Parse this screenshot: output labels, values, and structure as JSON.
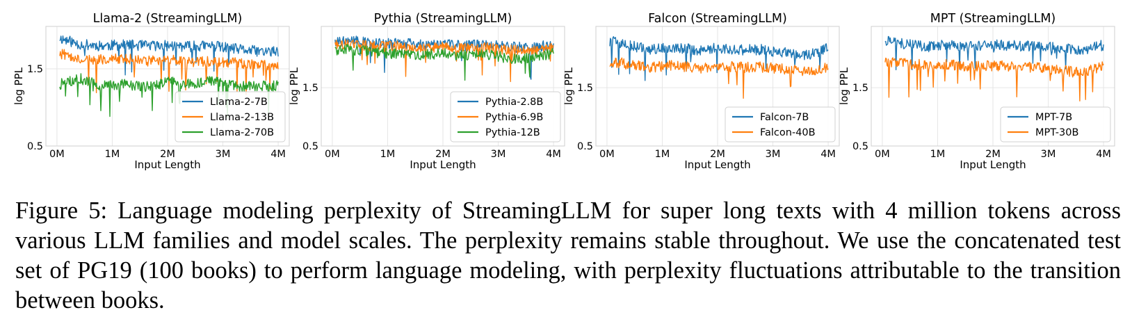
{
  "caption": "Figure 5: Language modeling perplexity of StreamingLLM for super long texts with 4 million tokens across various LLM families and model scales. The perplexity remains stable throughout. We use the concatenated test set of PG19 (100 books) to perform language modeling, with perplexity fluctuations attributable to the transition between books.",
  "colors": {
    "blue": "#1f77b4",
    "orange": "#ff7f0e",
    "green": "#2ca02c",
    "grid": "#e6e6e6"
  },
  "chart_data": [
    {
      "type": "line",
      "title": "Llama-2 (StreamingLLM)",
      "xlabel": "Input Length",
      "ylabel": "log PPL",
      "xticks": [
        "0M",
        "1M",
        "2M",
        "3M",
        "4M"
      ],
      "yticks": [
        "0.5",
        "1.5"
      ],
      "xlim": [
        -0.2,
        4.2
      ],
      "ylim": [
        0.5,
        2.05
      ],
      "grid": true,
      "legend": "lower right",
      "x": [
        0.05,
        0.4,
        0.8,
        1.2,
        1.6,
        2.0,
        2.4,
        2.8,
        3.2,
        3.6,
        4.0
      ],
      "series": [
        {
          "name": "Llama-2-7B",
          "color": "blue",
          "values": [
            1.9,
            1.82,
            1.8,
            1.81,
            1.8,
            1.8,
            1.79,
            1.8,
            1.76,
            1.73,
            1.72
          ]
        },
        {
          "name": "Llama-2-13B",
          "color": "orange",
          "values": [
            1.7,
            1.64,
            1.62,
            1.63,
            1.6,
            1.62,
            1.59,
            1.6,
            1.58,
            1.55,
            1.56
          ]
        },
        {
          "name": "Llama-2-70B",
          "color": "green",
          "values": [
            1.3,
            1.38,
            1.28,
            1.3,
            1.27,
            1.33,
            1.3,
            1.34,
            1.28,
            1.27,
            1.28
          ]
        }
      ]
    },
    {
      "type": "line",
      "title": "Pythia (StreamingLLM)",
      "xlabel": "Input Length",
      "ylabel": "log PPL",
      "xticks": [
        "0M",
        "1M",
        "2M",
        "3M",
        "4M"
      ],
      "yticks": [
        "0.5",
        "1.5"
      ],
      "xlim": [
        -0.2,
        4.2
      ],
      "ylim": [
        0.5,
        2.55
      ],
      "grid": true,
      "legend": "lower right",
      "x": [
        0.05,
        0.4,
        0.8,
        1.2,
        1.6,
        2.0,
        2.4,
        2.8,
        3.2,
        3.6,
        4.0
      ],
      "series": [
        {
          "name": "Pythia-2.8B",
          "color": "blue",
          "values": [
            2.3,
            2.3,
            2.25,
            2.26,
            2.24,
            2.25,
            2.22,
            2.24,
            2.2,
            2.18,
            2.24
          ]
        },
        {
          "name": "Pythia-6.9B",
          "color": "orange",
          "values": [
            2.25,
            2.24,
            2.2,
            2.21,
            2.19,
            2.2,
            2.17,
            2.19,
            2.15,
            2.12,
            2.18
          ]
        },
        {
          "name": "Pythia-12B",
          "color": "green",
          "values": [
            2.15,
            2.15,
            2.1,
            2.08,
            2.06,
            2.09,
            2.05,
            2.07,
            2.0,
            2.0,
            2.1
          ]
        }
      ]
    },
    {
      "type": "line",
      "title": "Falcon (StreamingLLM)",
      "xlabel": "Input Length",
      "ylabel": "log PPL",
      "xticks": [
        "0M",
        "1M",
        "2M",
        "3M",
        "4M"
      ],
      "yticks": [
        "0.5",
        "1.5"
      ],
      "xlim": [
        -0.2,
        4.2
      ],
      "ylim": [
        0.5,
        2.55
      ],
      "grid": true,
      "legend": "lower right",
      "x": [
        0.05,
        0.4,
        0.8,
        1.2,
        1.6,
        2.0,
        2.4,
        2.8,
        3.2,
        3.6,
        4.0
      ],
      "series": [
        {
          "name": "Falcon-7B",
          "color": "blue",
          "values": [
            2.3,
            2.22,
            2.15,
            2.2,
            2.14,
            2.18,
            2.15,
            2.15,
            2.1,
            2.06,
            2.17
          ]
        },
        {
          "name": "Falcon-40B",
          "color": "orange",
          "values": [
            1.95,
            1.9,
            1.85,
            1.88,
            1.83,
            1.87,
            1.85,
            1.85,
            1.82,
            1.78,
            1.86
          ]
        }
      ]
    },
    {
      "type": "line",
      "title": "MPT (StreamingLLM)",
      "xlabel": "Input Length",
      "ylabel": "log PPL",
      "xticks": [
        "0M",
        "1M",
        "2M",
        "3M",
        "4M"
      ],
      "yticks": [
        "0.5",
        "1.5"
      ],
      "xlim": [
        -0.2,
        4.2
      ],
      "ylim": [
        0.5,
        2.55
      ],
      "grid": true,
      "legend": "lower right",
      "x": [
        0.05,
        0.4,
        0.8,
        1.2,
        1.6,
        2.0,
        2.4,
        2.8,
        3.2,
        3.6,
        4.0
      ],
      "series": [
        {
          "name": "MPT-7B",
          "color": "blue",
          "values": [
            2.3,
            2.25,
            2.2,
            2.24,
            2.2,
            2.23,
            2.22,
            2.2,
            2.18,
            2.15,
            2.23
          ]
        },
        {
          "name": "MPT-30B",
          "color": "orange",
          "values": [
            1.95,
            1.92,
            1.88,
            1.9,
            1.86,
            1.88,
            1.86,
            1.84,
            1.8,
            1.75,
            1.86
          ]
        }
      ]
    }
  ]
}
